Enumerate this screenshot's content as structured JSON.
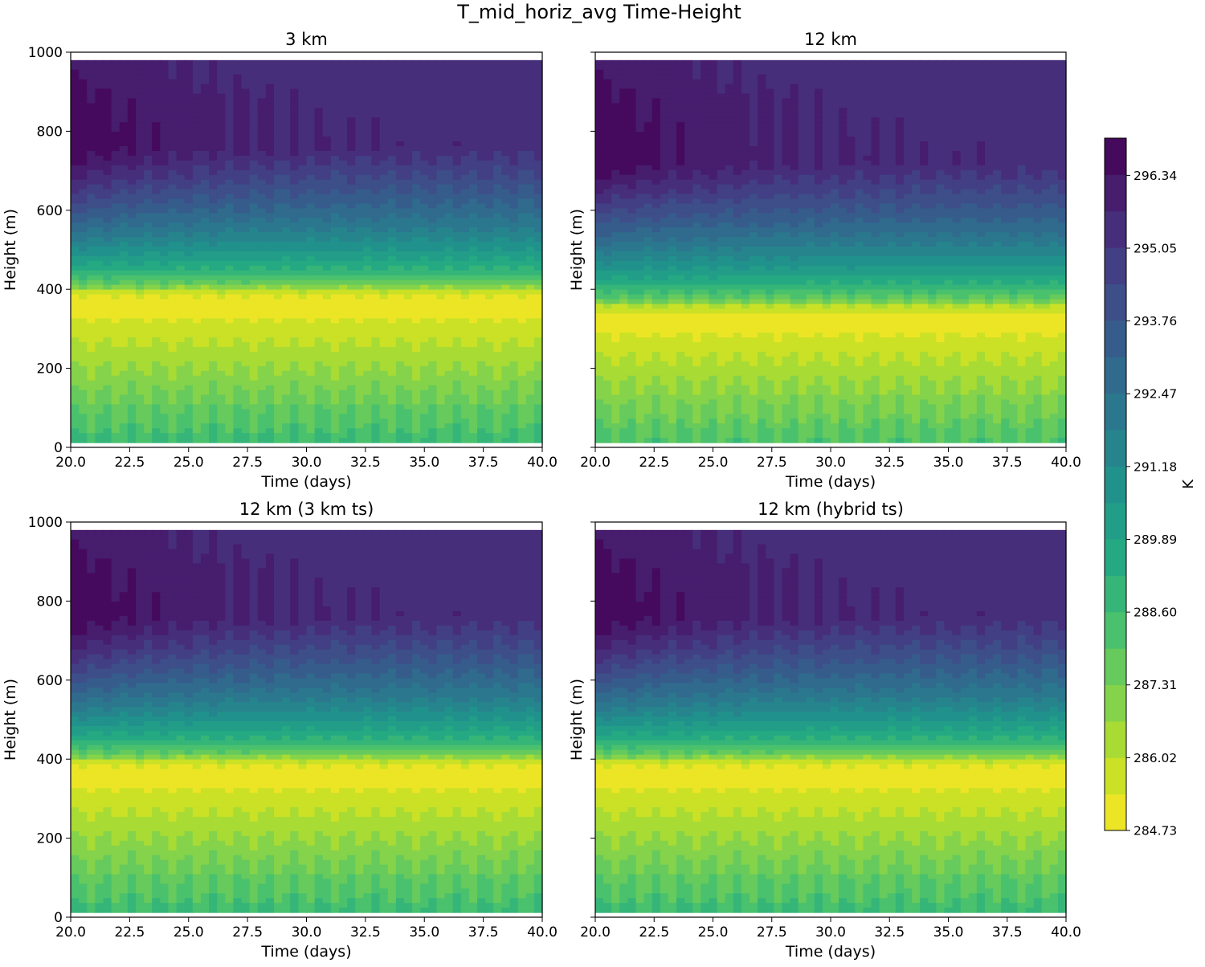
{
  "chart_data": {
    "type": "heatmap",
    "title": "T_mid_horiz_avg Time-Height",
    "colorbar": {
      "label": "K",
      "vmin": 284.73,
      "vmax": 297.0,
      "levels": 19,
      "ticks": [
        284.73,
        286.02,
        287.31,
        288.6,
        289.89,
        291.18,
        292.47,
        293.76,
        295.05,
        296.34
      ],
      "tick_labels": [
        "284.73",
        "286.02",
        "287.31",
        "288.60",
        "289.89",
        "291.18",
        "292.47",
        "293.76",
        "295.05",
        "296.34"
      ],
      "colormap": "viridis_r"
    },
    "panels": [
      {
        "title": "3 km",
        "xlabel": "Time (days)",
        "ylabel": "Height (m)",
        "xlim": [
          20.0,
          40.0
        ],
        "ylim": [
          0,
          1000
        ],
        "data_top_height": 980,
        "inversion_height": 400,
        "min_temp_height": 360,
        "xticks": [
          "20.0",
          "22.5",
          "25.0",
          "27.5",
          "30.0",
          "32.5",
          "35.0",
          "37.5",
          "40.0"
        ],
        "yticks": [
          "0",
          "200",
          "400",
          "600",
          "800",
          "1000"
        ],
        "show_ytick_labels": true
      },
      {
        "title": "12 km",
        "xlabel": "Time (days)",
        "ylabel": "Height (m)",
        "xlim": [
          20.0,
          40.0
        ],
        "ylim": [
          0,
          1000
        ],
        "data_top_height": 980,
        "inversion_height": 360,
        "min_temp_height": 320,
        "xticks": [
          "20.0",
          "22.5",
          "25.0",
          "27.5",
          "30.0",
          "32.5",
          "35.0",
          "37.5",
          "40.0"
        ],
        "yticks": [
          "0",
          "200",
          "400",
          "600",
          "800",
          "1000"
        ],
        "show_ytick_labels": false
      },
      {
        "title": "12 km (3 km ts)",
        "xlabel": "Time (days)",
        "ylabel": "Height (m)",
        "xlim": [
          20.0,
          40.0
        ],
        "ylim": [
          0,
          1000
        ],
        "data_top_height": 980,
        "inversion_height": 400,
        "min_temp_height": 360,
        "xticks": [
          "20.0",
          "22.5",
          "25.0",
          "27.5",
          "30.0",
          "32.5",
          "35.0",
          "37.5",
          "40.0"
        ],
        "yticks": [
          "0",
          "200",
          "400",
          "600",
          "800",
          "1000"
        ],
        "show_ytick_labels": true
      },
      {
        "title": "12 km (hybrid ts)",
        "xlabel": "Time (days)",
        "ylabel": "Height (m)",
        "xlim": [
          20.0,
          40.0
        ],
        "ylim": [
          0,
          1000
        ],
        "data_top_height": 980,
        "inversion_height": 400,
        "min_temp_height": 360,
        "xticks": [
          "20.0",
          "22.5",
          "25.0",
          "27.5",
          "30.0",
          "32.5",
          "35.0",
          "37.5",
          "40.0"
        ],
        "yticks": [
          "0",
          "200",
          "400",
          "600",
          "800",
          "1000"
        ],
        "show_ytick_labels": false
      }
    ]
  }
}
